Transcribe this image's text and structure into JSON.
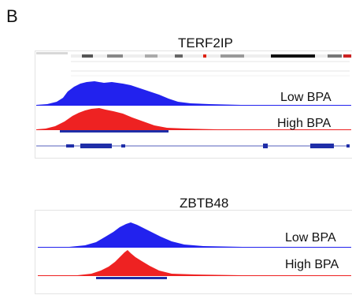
{
  "panel_label": "B",
  "panels": [
    {
      "gene": "TERF2IP",
      "tracks": [
        {
          "label": "Low BPA",
          "color": "#2222ee"
        },
        {
          "label": "High BPA",
          "color": "#ee2222"
        }
      ],
      "peak_bar_color": "#1f2ea8"
    },
    {
      "gene": "ZBTB48",
      "tracks": [
        {
          "label": "Low BPA",
          "color": "#2222ee"
        },
        {
          "label": "High BPA",
          "color": "#ee2222"
        }
      ],
      "peak_bar_color": "#1f2ea8"
    }
  ]
}
